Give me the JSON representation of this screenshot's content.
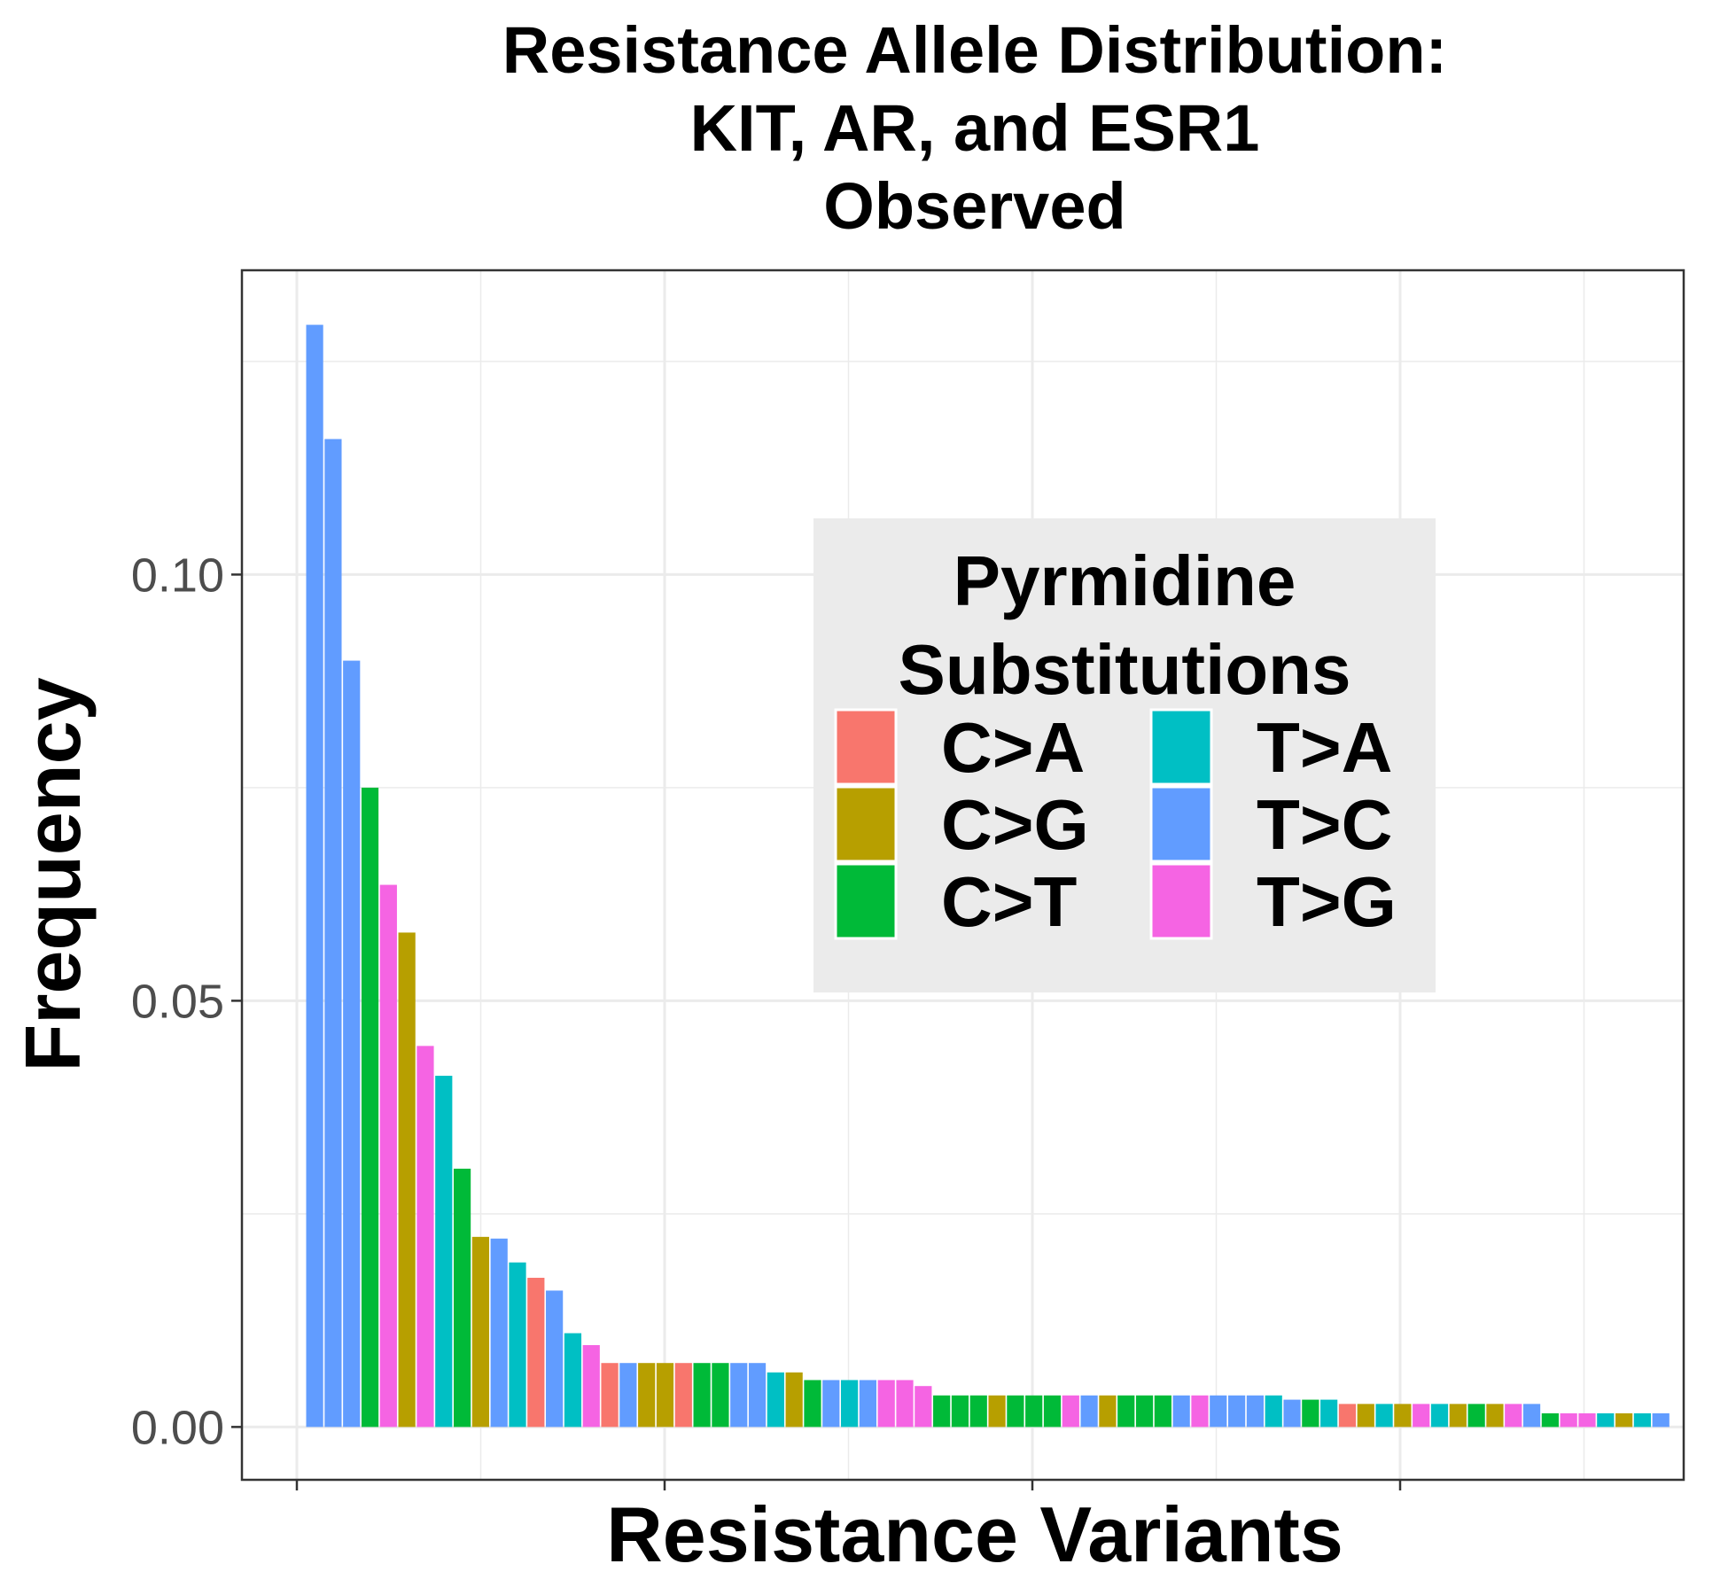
{
  "chart_data": {
    "type": "bar",
    "title": [
      "Resistance Allele Distribution:",
      "KIT, AR, and ESR1",
      "Observed"
    ],
    "xlabel": "Resistance Variants",
    "ylabel": "Frequency",
    "ylim": [
      -0.0062,
      0.1357
    ],
    "yticks": [
      0.0,
      0.05,
      0.1
    ],
    "ytick_labels": [
      "0.00",
      "0.05",
      "0.10"
    ],
    "grid": true,
    "legend": {
      "title": [
        "Pyrmidine",
        "Substitutions"
      ],
      "placement": "top-right inside",
      "entries": [
        {
          "label": "C>A",
          "color": "#F8766D"
        },
        {
          "label": "C>G",
          "color": "#B79F00"
        },
        {
          "label": "C>T",
          "color": "#00BA38"
        },
        {
          "label": "T>A",
          "color": "#00BFC4"
        },
        {
          "label": "T>C",
          "color": "#619CFF"
        },
        {
          "label": "T>G",
          "color": "#F564E3"
        }
      ]
    },
    "bars": [
      {
        "cls": "T>C",
        "value": 0.1293
      },
      {
        "cls": "T>C",
        "value": 0.1159
      },
      {
        "cls": "T>C",
        "value": 0.0899
      },
      {
        "cls": "C>T",
        "value": 0.075
      },
      {
        "cls": "T>G",
        "value": 0.0636
      },
      {
        "cls": "C>G",
        "value": 0.058
      },
      {
        "cls": "T>G",
        "value": 0.0447
      },
      {
        "cls": "T>A",
        "value": 0.0412
      },
      {
        "cls": "C>T",
        "value": 0.0303
      },
      {
        "cls": "C>G",
        "value": 0.0223
      },
      {
        "cls": "T>C",
        "value": 0.0221
      },
      {
        "cls": "T>A",
        "value": 0.0193
      },
      {
        "cls": "C>A",
        "value": 0.0175
      },
      {
        "cls": "T>C",
        "value": 0.016
      },
      {
        "cls": "T>A",
        "value": 0.011
      },
      {
        "cls": "T>G",
        "value": 0.0096
      },
      {
        "cls": "C>A",
        "value": 0.0075
      },
      {
        "cls": "T>C",
        "value": 0.0075
      },
      {
        "cls": "C>G",
        "value": 0.0075
      },
      {
        "cls": "C>G",
        "value": 0.0075
      },
      {
        "cls": "C>A",
        "value": 0.0075
      },
      {
        "cls": "C>T",
        "value": 0.0075
      },
      {
        "cls": "C>T",
        "value": 0.0075
      },
      {
        "cls": "T>C",
        "value": 0.0075
      },
      {
        "cls": "T>C",
        "value": 0.0075
      },
      {
        "cls": "T>A",
        "value": 0.0064
      },
      {
        "cls": "C>G",
        "value": 0.0064
      },
      {
        "cls": "C>T",
        "value": 0.0055
      },
      {
        "cls": "T>C",
        "value": 0.0055
      },
      {
        "cls": "T>A",
        "value": 0.0055
      },
      {
        "cls": "T>C",
        "value": 0.0055
      },
      {
        "cls": "T>G",
        "value": 0.0055
      },
      {
        "cls": "T>G",
        "value": 0.0055
      },
      {
        "cls": "T>G",
        "value": 0.0048
      },
      {
        "cls": "C>T",
        "value": 0.0037
      },
      {
        "cls": "C>T",
        "value": 0.0037
      },
      {
        "cls": "C>T",
        "value": 0.0037
      },
      {
        "cls": "C>G",
        "value": 0.0037
      },
      {
        "cls": "C>T",
        "value": 0.0037
      },
      {
        "cls": "C>T",
        "value": 0.0037
      },
      {
        "cls": "C>T",
        "value": 0.0037
      },
      {
        "cls": "T>G",
        "value": 0.0037
      },
      {
        "cls": "T>C",
        "value": 0.0037
      },
      {
        "cls": "C>G",
        "value": 0.0037
      },
      {
        "cls": "C>T",
        "value": 0.0037
      },
      {
        "cls": "C>T",
        "value": 0.0037
      },
      {
        "cls": "C>T",
        "value": 0.0037
      },
      {
        "cls": "T>C",
        "value": 0.0037
      },
      {
        "cls": "T>G",
        "value": 0.0037
      },
      {
        "cls": "T>C",
        "value": 0.0037
      },
      {
        "cls": "T>C",
        "value": 0.0037
      },
      {
        "cls": "T>C",
        "value": 0.0037
      },
      {
        "cls": "T>A",
        "value": 0.0037
      },
      {
        "cls": "T>C",
        "value": 0.0032
      },
      {
        "cls": "C>T",
        "value": 0.0032
      },
      {
        "cls": "T>A",
        "value": 0.0032
      },
      {
        "cls": "C>A",
        "value": 0.0027
      },
      {
        "cls": "C>G",
        "value": 0.0027
      },
      {
        "cls": "T>A",
        "value": 0.0027
      },
      {
        "cls": "C>G",
        "value": 0.0027
      },
      {
        "cls": "T>G",
        "value": 0.0027
      },
      {
        "cls": "T>A",
        "value": 0.0027
      },
      {
        "cls": "C>G",
        "value": 0.0027
      },
      {
        "cls": "C>T",
        "value": 0.0027
      },
      {
        "cls": "C>G",
        "value": 0.0027
      },
      {
        "cls": "T>G",
        "value": 0.0027
      },
      {
        "cls": "T>C",
        "value": 0.0027
      },
      {
        "cls": "C>T",
        "value": 0.0016
      },
      {
        "cls": "T>G",
        "value": 0.0016
      },
      {
        "cls": "T>G",
        "value": 0.0016
      },
      {
        "cls": "T>A",
        "value": 0.0016
      },
      {
        "cls": "C>G",
        "value": 0.0016
      },
      {
        "cls": "T>A",
        "value": 0.0016
      },
      {
        "cls": "T>C",
        "value": 0.0016
      }
    ]
  }
}
